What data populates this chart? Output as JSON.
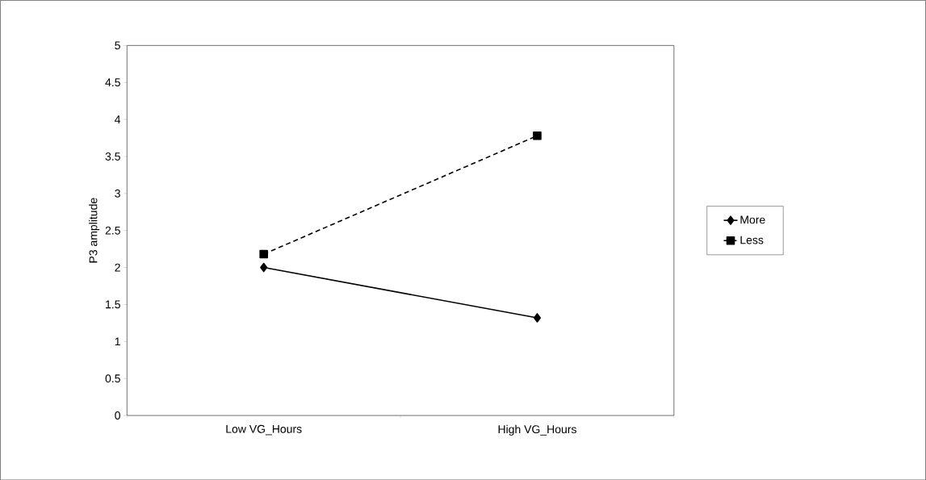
{
  "chart_data": {
    "type": "line",
    "ylabel": "P3 amplitude",
    "categories": [
      "Low VG_Hours",
      "High VG_Hours"
    ],
    "series": [
      {
        "name": "More",
        "color": "#000000",
        "values": [
          2.0,
          1.32
        ],
        "marker": "diamond",
        "line_style": "solid"
      },
      {
        "name": "Less",
        "color": "#000000",
        "values": [
          2.18,
          3.78
        ],
        "marker": "square",
        "line_style": "dashed"
      }
    ],
    "ylim": [
      0,
      5
    ],
    "yticks": [
      0,
      0.5,
      1,
      1.5,
      2,
      2.5,
      3,
      3.5,
      4,
      4.5,
      5
    ],
    "grid": false,
    "legend": "right"
  }
}
